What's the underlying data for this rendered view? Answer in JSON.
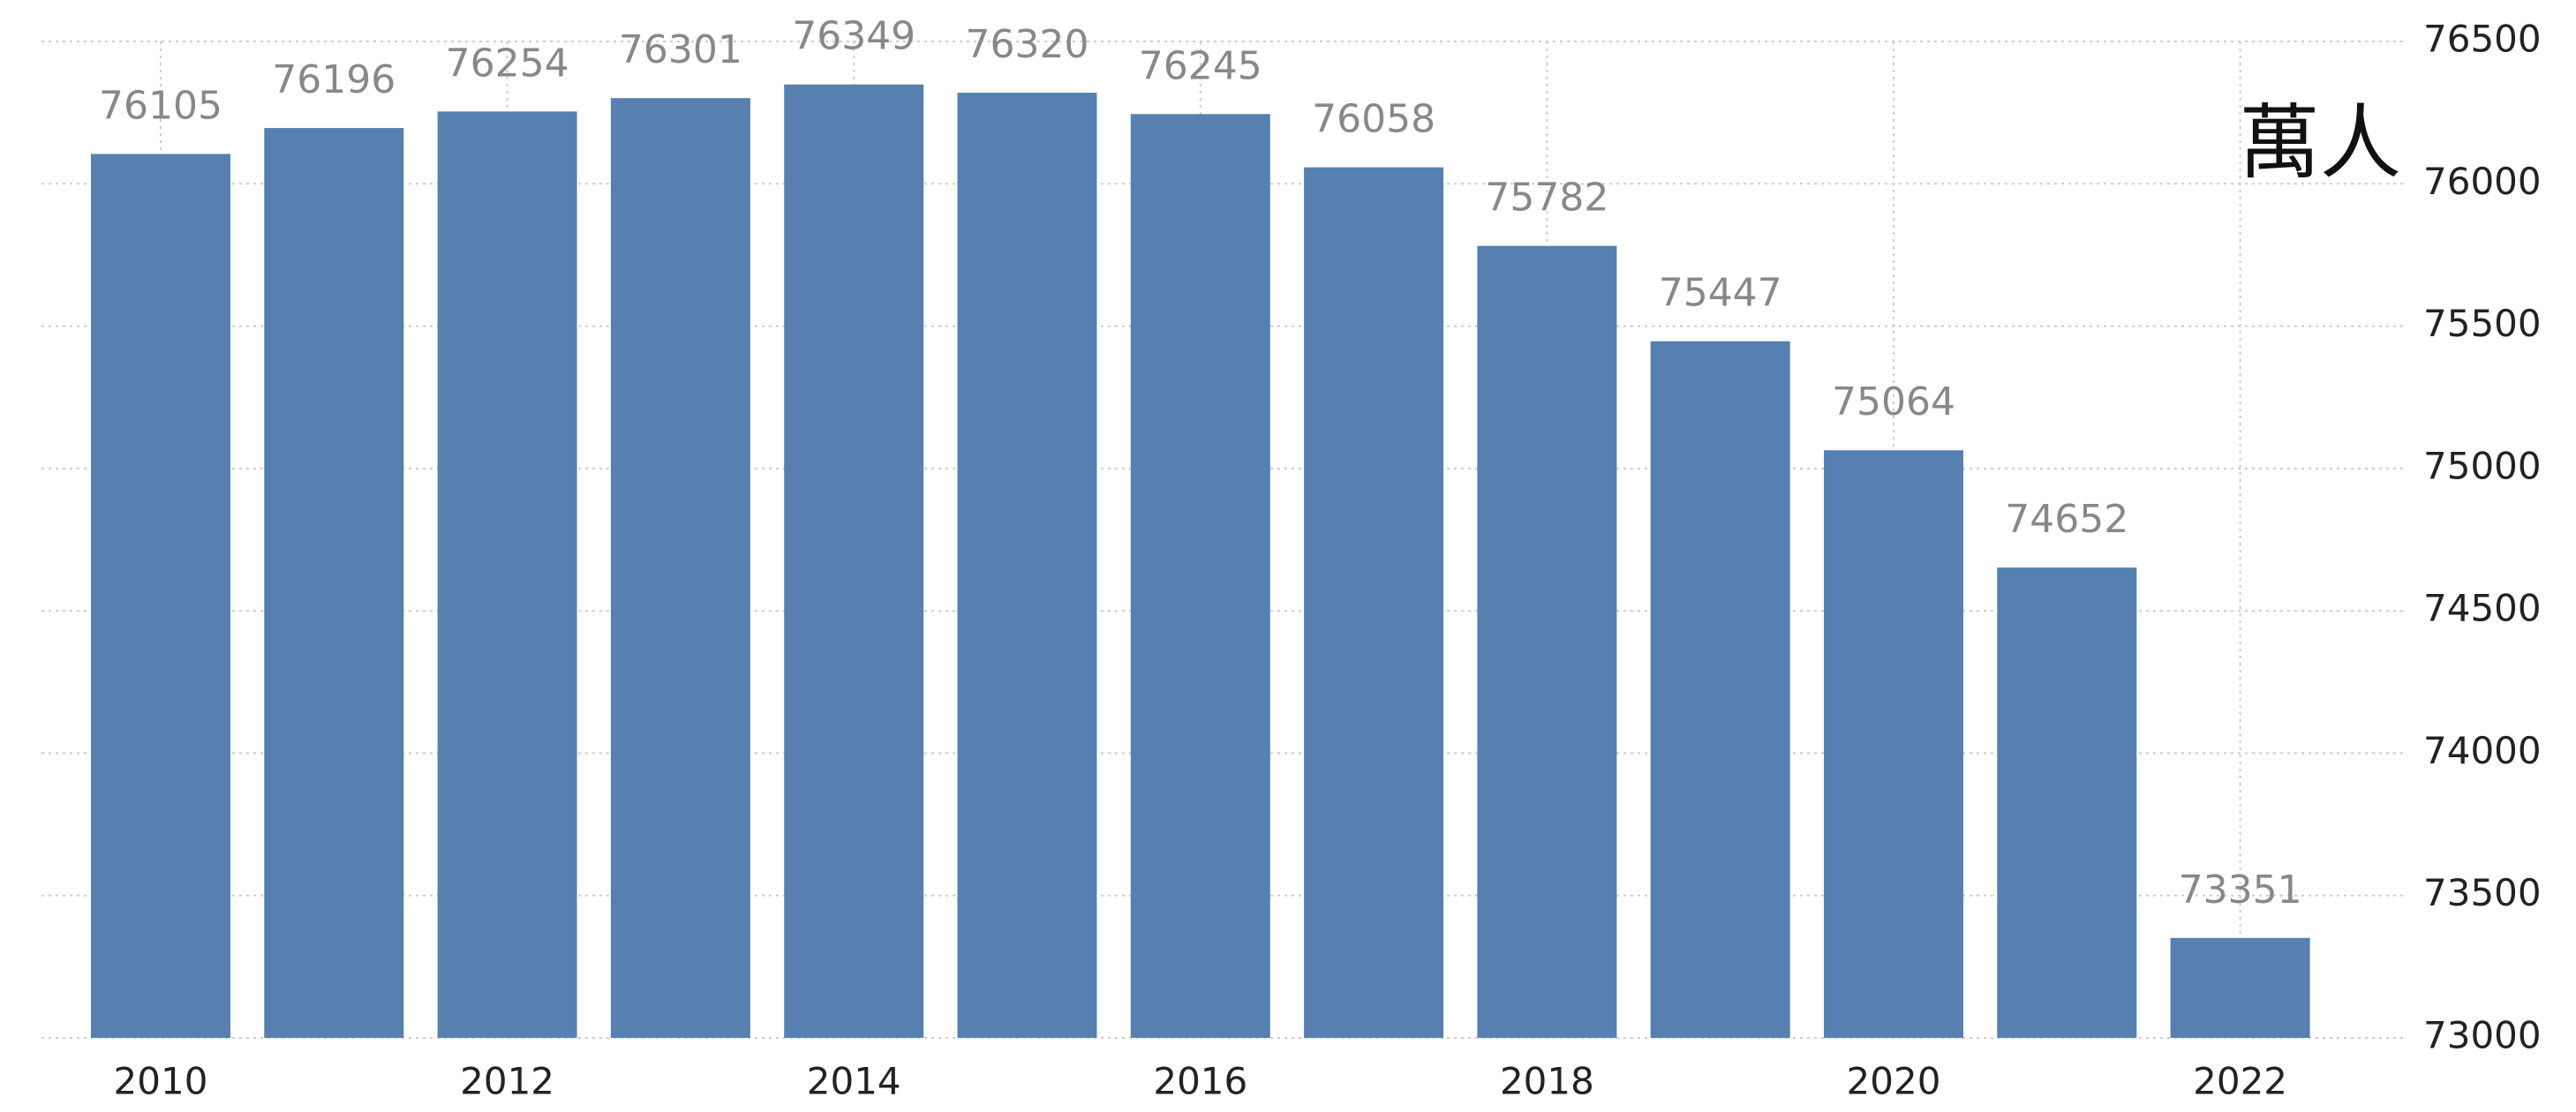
{
  "chart_data": {
    "type": "bar",
    "annotation": "萬人",
    "categories": [
      "2010",
      null,
      "2012",
      null,
      "2014",
      null,
      "2016",
      null,
      "2018",
      null,
      "2020",
      null,
      "2022"
    ],
    "values": [
      76105,
      76196,
      76254,
      76301,
      76349,
      76320,
      76245,
      76058,
      75782,
      75447,
      75064,
      74652,
      73351
    ],
    "color": "#5580b0",
    "ylim": [
      73000,
      76500
    ],
    "yticks": [
      73000,
      73500,
      74000,
      74500,
      75000,
      75500,
      76000,
      76500
    ],
    "grid": true
  }
}
